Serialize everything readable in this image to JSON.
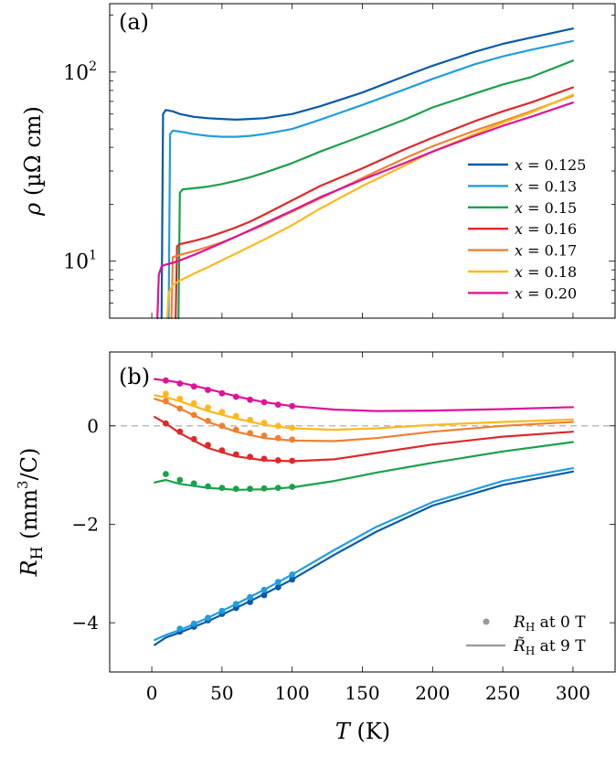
{
  "chart_data": [
    {
      "type": "line",
      "panel_label": "(a)",
      "xlabel": "T (K)",
      "ylabel": "ρ (µΩ cm)",
      "yscale": "log",
      "xlim": [
        -30,
        330
      ],
      "ylim": [
        5,
        230
      ],
      "xticks": [
        0,
        50,
        100,
        150,
        200,
        250,
        300
      ],
      "ytick_labels": [
        {
          "value": 10,
          "base": "10",
          "exp": "1"
        },
        {
          "value": 100,
          "base": "10",
          "exp": "2"
        }
      ],
      "legend_position": "bottom-right",
      "series": [
        {
          "name": "x = 0.125",
          "var": "x",
          "eq": " = 0.125",
          "color": "#0a5aa8",
          "tc": 7,
          "x": [
            7,
            8,
            10,
            15,
            20,
            30,
            40,
            50,
            60,
            70,
            80,
            100,
            120,
            150,
            180,
            200,
            230,
            250,
            270,
            300
          ],
          "y": [
            5,
            60,
            63,
            62,
            60,
            58,
            57,
            56.5,
            56,
            56.5,
            57,
            60,
            66,
            78,
            95,
            108,
            128,
            141,
            152,
            170
          ]
        },
        {
          "name": "x = 0.13",
          "var": "x",
          "eq": " = 0.13",
          "color": "#1f9ee0",
          "tc": 12,
          "x": [
            12,
            13,
            15,
            20,
            30,
            40,
            50,
            60,
            70,
            80,
            100,
            120,
            150,
            180,
            200,
            230,
            250,
            270,
            300
          ],
          "y": [
            5,
            47,
            49,
            48.5,
            47,
            46,
            45.5,
            45.5,
            46,
            47,
            50,
            56,
            67,
            81,
            92,
            110,
            121,
            131,
            146
          ]
        },
        {
          "name": "x = 0.15",
          "var": "x",
          "eq": " = 0.15",
          "color": "#1aa14a",
          "tc": 19,
          "x": [
            19,
            20,
            22,
            30,
            40,
            50,
            60,
            70,
            80,
            100,
            120,
            150,
            180,
            200,
            230,
            250,
            270,
            300
          ],
          "y": [
            5,
            23,
            24,
            24.3,
            24.8,
            25.6,
            26.6,
            27.8,
            29.3,
            33,
            38,
            46,
            56,
            65,
            77,
            86,
            94,
            115
          ]
        },
        {
          "name": "x = 0.16",
          "var": "x",
          "eq": " = 0.16",
          "color": "#e02828",
          "tc": 17,
          "x": [
            17,
            18,
            20,
            30,
            40,
            50,
            60,
            70,
            80,
            100,
            120,
            150,
            180,
            200,
            230,
            250,
            270,
            300
          ],
          "y": [
            5,
            12,
            12.3,
            12.8,
            13.4,
            14.2,
            15.1,
            16.2,
            17.6,
            21,
            25,
            31,
            39,
            45,
            55,
            62,
            69,
            83
          ]
        },
        {
          "name": "x = 0.17",
          "var": "x",
          "eq": " = 0.17",
          "color": "#f08030",
          "tc": 14,
          "x": [
            14,
            15,
            20,
            30,
            40,
            50,
            60,
            70,
            80,
            100,
            120,
            150,
            180,
            200,
            230,
            250,
            270,
            300
          ],
          "y": [
            5,
            10.5,
            10.8,
            11.3,
            11.9,
            12.6,
            13.5,
            14.5,
            15.6,
            18.3,
            21.5,
            27.5,
            35,
            40.5,
            49,
            55,
            62,
            75
          ]
        },
        {
          "name": "x = 0.18",
          "var": "x",
          "eq": " = 0.18",
          "color": "#ffb81c",
          "tc": 11,
          "x": [
            11,
            12,
            15,
            20,
            30,
            40,
            60,
            80,
            100,
            120,
            150,
            180,
            200,
            230,
            250,
            270,
            300
          ],
          "y": [
            5,
            6.8,
            7.5,
            7.9,
            8.6,
            9.3,
            11,
            13,
            15.5,
            19,
            25,
            32,
            38,
            47,
            54,
            61,
            76
          ]
        },
        {
          "name": "x = 0.20",
          "var": "x",
          "eq": " = 0.20",
          "color": "#e0129a",
          "tc": 4,
          "x": [
            4,
            5,
            7,
            10,
            15,
            20,
            30,
            40,
            60,
            80,
            100,
            120,
            150,
            180,
            200,
            230,
            250,
            270,
            300
          ],
          "y": [
            5,
            8.5,
            9.4,
            9.6,
            9.8,
            10.1,
            10.8,
            11.6,
            13.5,
            15.8,
            18.5,
            21.8,
            27,
            33,
            38,
            46,
            52,
            58,
            69
          ]
        }
      ]
    },
    {
      "type": "line",
      "panel_label": "(b)",
      "xlabel": "T (K)",
      "ylabel": "R_H (mm³/C)",
      "xlim": [
        -30,
        330
      ],
      "ylim": [
        -5,
        1.5
      ],
      "xticks": [
        0,
        50,
        100,
        150,
        200,
        250,
        300
      ],
      "yticks": [
        -4,
        -2,
        0
      ],
      "ytick_labels": [
        "−4",
        "−2",
        "0"
      ],
      "zero_line": true,
      "legend_position": "bottom-right",
      "legend": {
        "dots_label": "R_H at 0 T",
        "dots": {
          "sym": "R",
          "sub": "H",
          "rest": " at 0 T"
        },
        "line_label": "R̃_H at 9 T",
        "line": {
          "sym": "R̃",
          "sub": "H",
          "rest": " at 9 T"
        }
      },
      "series": [
        {
          "name": "x = 0.125",
          "color": "#0a5aa8",
          "line_x": [
            2,
            10,
            20,
            40,
            60,
            80,
            100,
            130,
            160,
            200,
            250,
            300
          ],
          "line_y": [
            -4.45,
            -4.3,
            -4.2,
            -3.97,
            -3.7,
            -3.42,
            -3.12,
            -2.62,
            -2.15,
            -1.62,
            -1.2,
            -0.93
          ],
          "dots_x": [
            20,
            30,
            40,
            50,
            60,
            70,
            80,
            90,
            100
          ],
          "dots_y": [
            -4.18,
            -4.08,
            -3.95,
            -3.82,
            -3.7,
            -3.58,
            -3.44,
            -3.28,
            -3.12
          ]
        },
        {
          "name": "x = 0.13",
          "color": "#1f9ee0",
          "line_x": [
            2,
            10,
            20,
            40,
            60,
            80,
            100,
            130,
            160,
            200,
            250,
            300
          ],
          "line_y": [
            -4.35,
            -4.25,
            -4.15,
            -3.9,
            -3.62,
            -3.33,
            -3.02,
            -2.52,
            -2.05,
            -1.55,
            -1.12,
            -0.86
          ],
          "dots_x": [
            20,
            30,
            40,
            50,
            60,
            70,
            80,
            90,
            100
          ],
          "dots_y": [
            -4.12,
            -4.02,
            -3.9,
            -3.76,
            -3.62,
            -3.48,
            -3.33,
            -3.17,
            -3.02
          ]
        },
        {
          "name": "x = 0.15",
          "color": "#1aa14a",
          "line_x": [
            2,
            10,
            20,
            40,
            60,
            80,
            100,
            130,
            160,
            200,
            250,
            300
          ],
          "line_y": [
            -1.15,
            -1.1,
            -1.18,
            -1.26,
            -1.3,
            -1.29,
            -1.25,
            -1.12,
            -0.95,
            -0.75,
            -0.52,
            -0.33
          ],
          "dots_x": [
            10,
            20,
            30,
            40,
            50,
            60,
            70,
            80,
            90,
            100
          ],
          "dots_y": [
            -0.98,
            -1.1,
            -1.17,
            -1.23,
            -1.26,
            -1.28,
            -1.28,
            -1.27,
            -1.26,
            -1.24
          ]
        },
        {
          "name": "x = 0.16",
          "color": "#e02828",
          "line_x": [
            2,
            10,
            20,
            40,
            60,
            80,
            100,
            130,
            160,
            200,
            250,
            300
          ],
          "line_y": [
            0.18,
            0.05,
            -0.15,
            -0.45,
            -0.62,
            -0.7,
            -0.72,
            -0.68,
            -0.55,
            -0.38,
            -0.22,
            -0.12
          ],
          "dots_x": [
            10,
            20,
            30,
            40,
            50,
            60,
            70,
            80,
            90,
            100
          ],
          "dots_y": [
            0.05,
            -0.12,
            -0.27,
            -0.39,
            -0.5,
            -0.58,
            -0.63,
            -0.67,
            -0.7,
            -0.71
          ]
        },
        {
          "name": "x = 0.17",
          "color": "#f08030",
          "line_x": [
            2,
            10,
            20,
            40,
            60,
            80,
            100,
            130,
            160,
            200,
            250,
            300
          ],
          "line_y": [
            0.55,
            0.48,
            0.35,
            0.08,
            -0.12,
            -0.25,
            -0.3,
            -0.31,
            -0.25,
            -0.12,
            0.0,
            0.08
          ],
          "dots_x": [
            10,
            20,
            30,
            40,
            50,
            60,
            70,
            80,
            90,
            100
          ],
          "dots_y": [
            0.5,
            0.35,
            0.22,
            0.1,
            0.0,
            -0.08,
            -0.15,
            -0.2,
            -0.25,
            -0.28
          ]
        },
        {
          "name": "x = 0.18",
          "color": "#ffb81c",
          "line_x": [
            2,
            10,
            20,
            40,
            60,
            80,
            100,
            130,
            160,
            200,
            250,
            300
          ],
          "line_y": [
            0.62,
            0.58,
            0.5,
            0.3,
            0.15,
            0.02,
            -0.05,
            -0.08,
            -0.05,
            0.02,
            0.08,
            0.13
          ],
          "dots_x": [
            10,
            20,
            30,
            40,
            50,
            60,
            70,
            80,
            90,
            100
          ],
          "dots_y": [
            0.65,
            0.55,
            0.46,
            0.37,
            0.28,
            0.2,
            0.12,
            0.06,
            0.0,
            -0.04
          ]
        },
        {
          "name": "x = 0.20",
          "color": "#e0129a",
          "line_x": [
            2,
            10,
            20,
            40,
            60,
            80,
            100,
            130,
            160,
            200,
            250,
            300
          ],
          "line_y": [
            0.95,
            0.92,
            0.88,
            0.75,
            0.6,
            0.48,
            0.4,
            0.33,
            0.3,
            0.31,
            0.34,
            0.38
          ],
          "dots_x": [
            10,
            20,
            30,
            40,
            50,
            60,
            70,
            80,
            90,
            100
          ],
          "dots_y": [
            0.92,
            0.86,
            0.8,
            0.73,
            0.66,
            0.59,
            0.53,
            0.48,
            0.43,
            0.4
          ]
        }
      ]
    }
  ],
  "axis_label_T": {
    "sym": "T",
    "unit": " (K)"
  },
  "axis_label_rho": {
    "sym": "ρ",
    "unit": " (µΩ cm)"
  },
  "axis_label_RH": {
    "sym": "R",
    "sub": "H",
    "unit_pre": " (mm",
    "unit_sup": "3",
    "unit_post": "/C)"
  },
  "colors": {
    "axis": "#000000",
    "zero_line": "#bbbbbb",
    "legend_gray": "#999999"
  }
}
